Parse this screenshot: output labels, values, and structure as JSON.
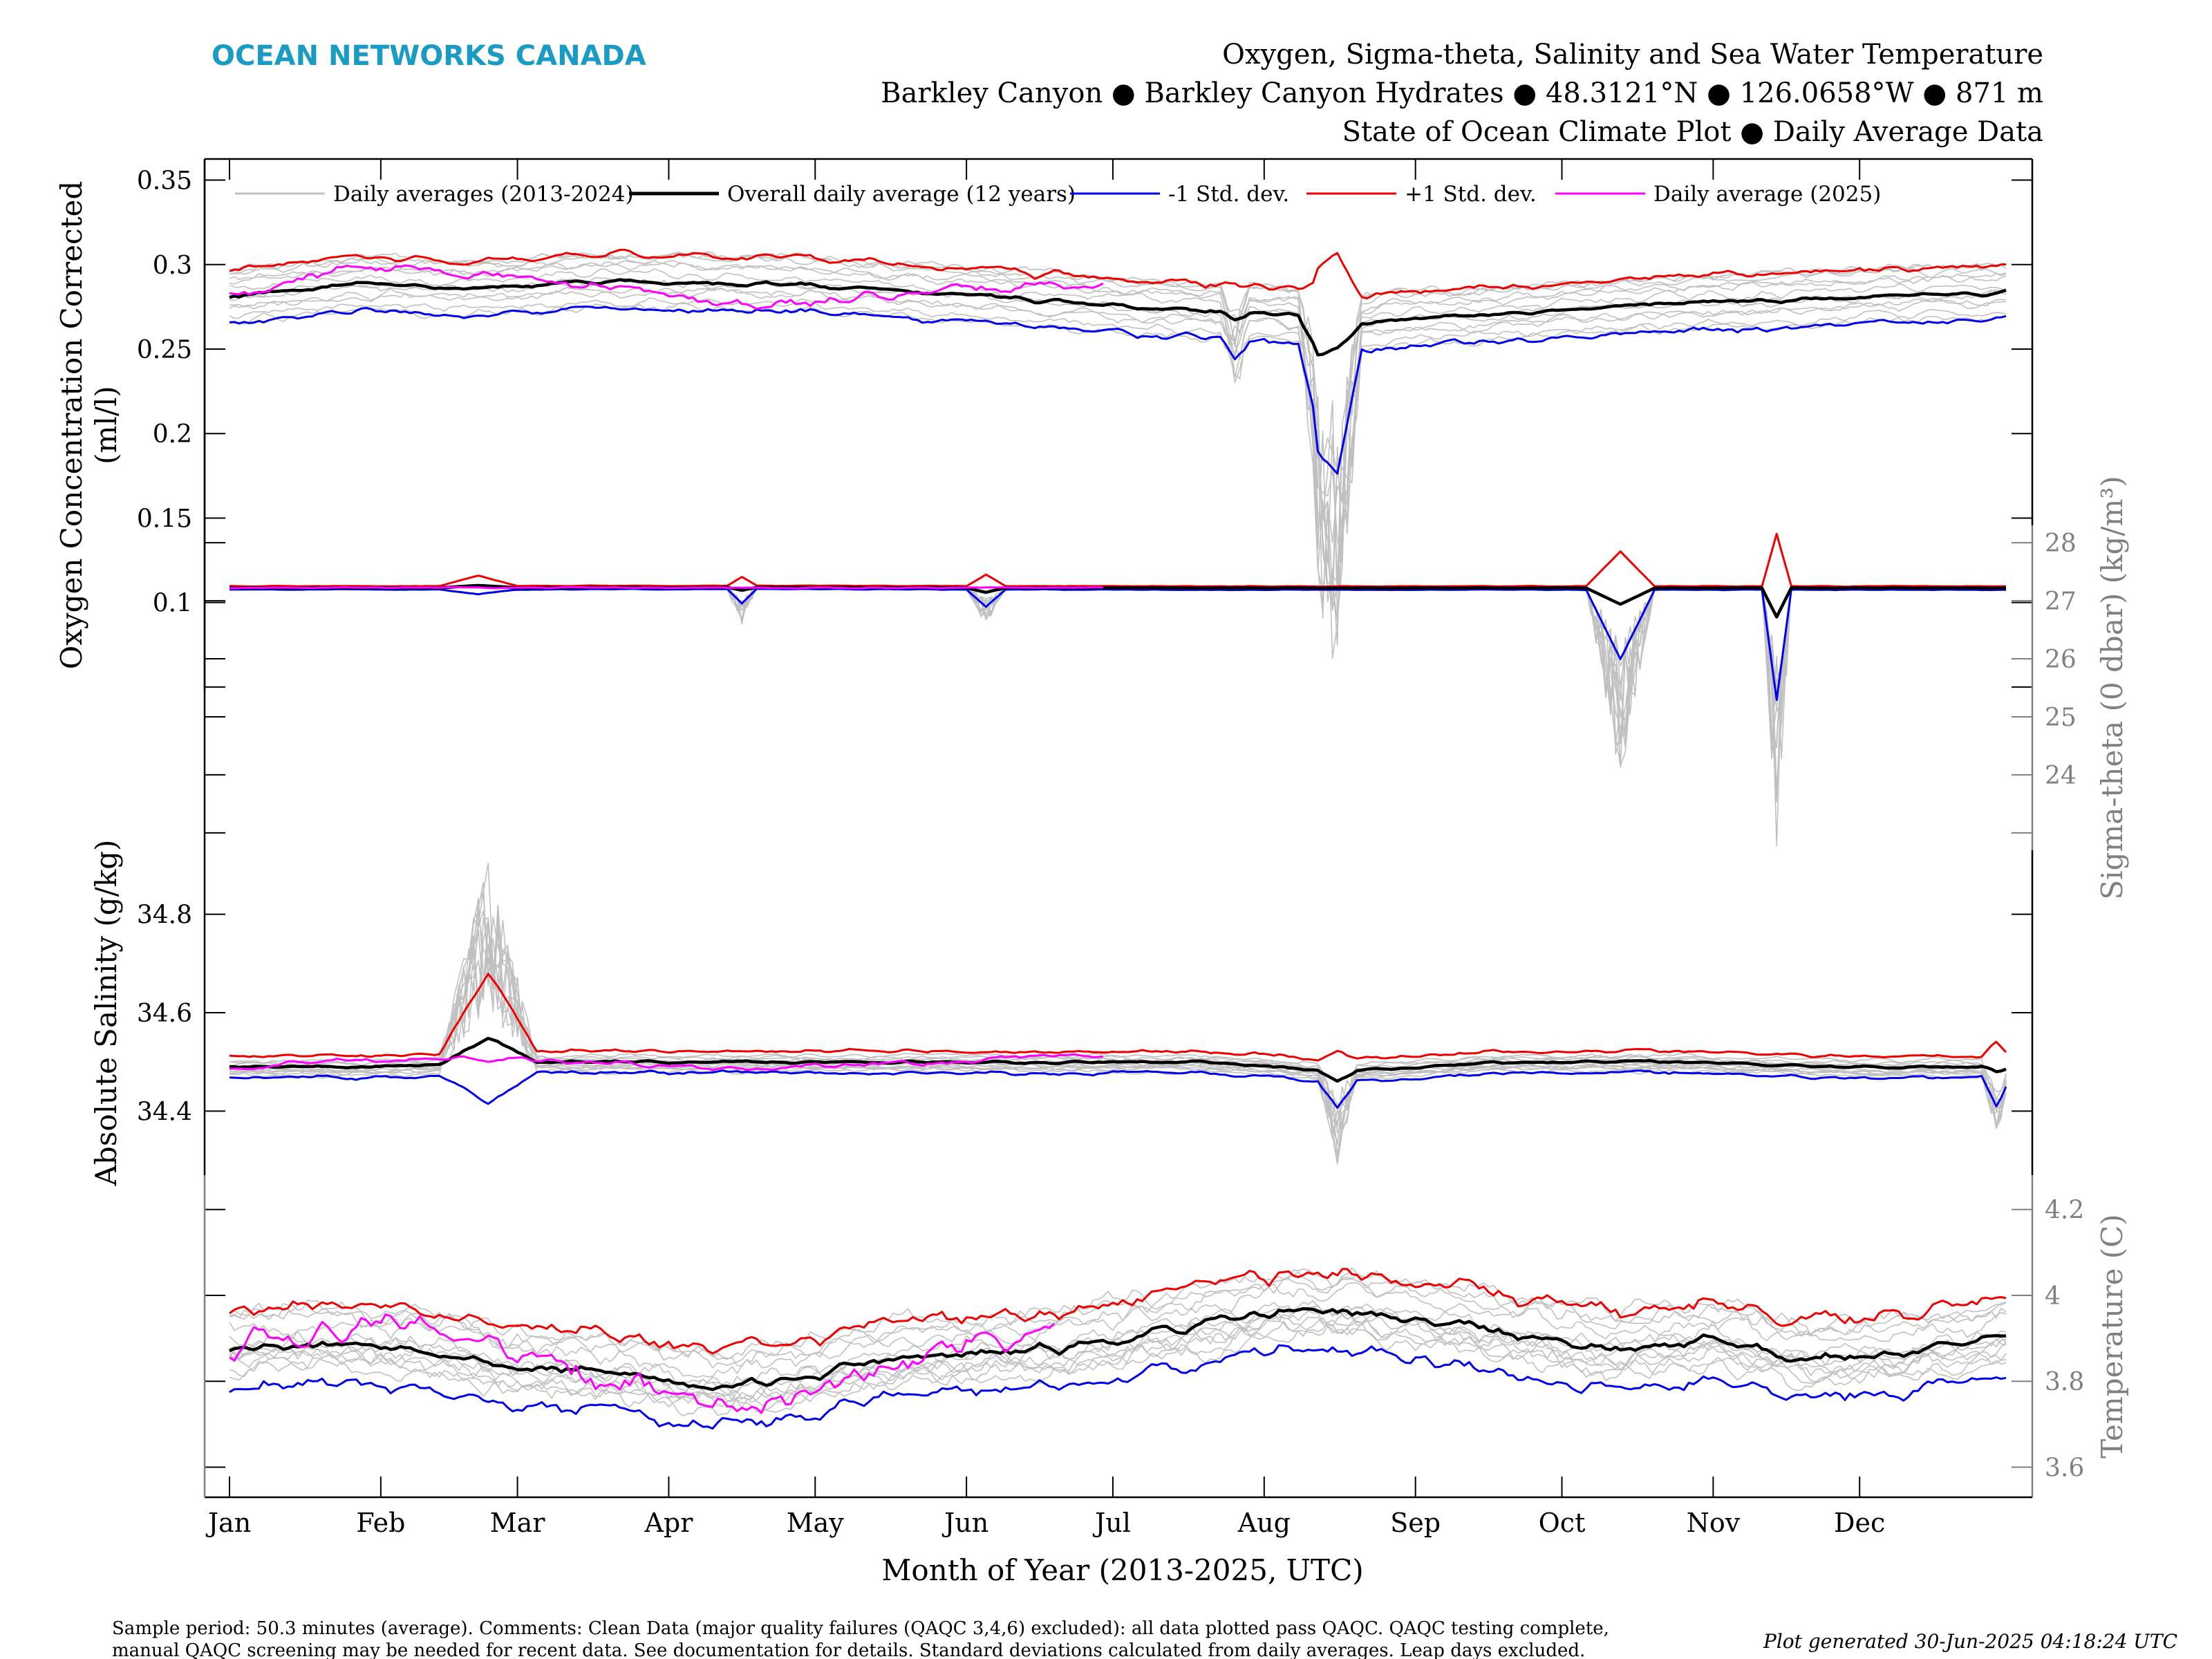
{
  "header": {
    "brand": "OCEAN NETWORKS CANADA",
    "brand_color": "#1a9bc4",
    "title_lines": [
      "Oxygen, Sigma-theta, Salinity and Sea Water Temperature",
      "Barkley Canyon ● Barkley Canyon Hydrates ● 48.3121°N ● 126.0658°W ● 871 m",
      "State of Ocean Climate Plot ● Daily Average Data"
    ]
  },
  "footer": {
    "sample_line1": "Sample period: 50.3 minutes (average). Comments: Clean Data (major quality failures (QAQC 3,4,6) excluded): all data plotted pass QAQC. QAQC testing complete,",
    "sample_line2": "manual QAQC screening may be needed for recent data. See documentation for details. Standard deviations calculated from daily averages. Leap days excluded.",
    "generated": "Plot generated 30-Jun-2025 04:18:24 UTC"
  },
  "chart_data": {
    "type": "line",
    "xlabel": "Month of Year (2013-2025, UTC)",
    "months": [
      "Jan",
      "Feb",
      "Mar",
      "Apr",
      "May",
      "Jun",
      "Jul",
      "Aug",
      "Sep",
      "Oct",
      "Nov",
      "Dec"
    ],
    "legend": [
      {
        "label": "Daily averages (2013-2024)",
        "color": "#c0c0c0"
      },
      {
        "label": "Overall daily average (12 years)",
        "color": "#000000"
      },
      {
        "label": "-1 Std. dev.",
        "color": "#0000ee"
      },
      {
        "label": "+1 Std. dev.",
        "color": "#ee0000"
      },
      {
        "label": "Daily average (2025)",
        "color": "#ff00ff"
      }
    ],
    "colors": {
      "history": "#c0c0c0",
      "mean": "#000000",
      "minus": "#0000ee",
      "plus": "#ee0000",
      "current": "#ff00ff",
      "right_axis": "#808080"
    },
    "panels": [
      {
        "name": "oxygen",
        "ylabel_line1": "Oxygen Concentration Corrected",
        "ylabel_line2": "(ml/l)",
        "axis_side": "left",
        "ylim": [
          0.0475,
          0.3625
        ],
        "ticks": [
          0.1,
          0.15,
          0.2,
          0.25,
          0.3,
          0.35
        ],
        "tick_labels": [
          "0.1",
          "0.15",
          "0.2",
          "0.25",
          "0.3",
          "0.35"
        ],
        "mean_nodes": [
          [
            1,
            0.281
          ],
          [
            15,
            0.285
          ],
          [
            30,
            0.288
          ],
          [
            45,
            0.286
          ],
          [
            60,
            0.287
          ],
          [
            75,
            0.29
          ],
          [
            90,
            0.29
          ],
          [
            105,
            0.289
          ],
          [
            120,
            0.288
          ],
          [
            135,
            0.285
          ],
          [
            150,
            0.282
          ],
          [
            165,
            0.279
          ],
          [
            180,
            0.276
          ],
          [
            195,
            0.273
          ],
          [
            210,
            0.272
          ],
          [
            220,
            0.27
          ],
          [
            225,
            0.262
          ],
          [
            230,
            0.262
          ],
          [
            240,
            0.268
          ],
          [
            255,
            0.269
          ],
          [
            270,
            0.272
          ],
          [
            285,
            0.275
          ],
          [
            300,
            0.277
          ],
          [
            315,
            0.278
          ],
          [
            330,
            0.28
          ],
          [
            345,
            0.282
          ],
          [
            365,
            0.283
          ]
        ],
        "std": 0.016,
        "noise": 0.0022,
        "history_spread": 0.018,
        "current_end_day": 180,
        "current_offset": 0.011,
        "spikes": [
          {
            "day": 224,
            "width": 4,
            "mean": -0.015,
            "minus": -0.045,
            "plus": 0.012,
            "hist": -0.09
          },
          {
            "day": 228,
            "width": 5,
            "mean": -0.012,
            "minus": -0.07,
            "plus": 0.028,
            "hist": -0.17
          },
          {
            "day": 207,
            "width": 3,
            "mean": -0.004,
            "minus": -0.01,
            "plus": 0.002,
            "hist": -0.03
          }
        ]
      },
      {
        "name": "sigma",
        "ylabel": "Sigma-theta (0 dbar) (kg/m³)",
        "axis_side": "right",
        "ylim": [
          22.7,
          28.3
        ],
        "ticks": [
          24,
          25,
          26,
          27,
          28
        ],
        "tick_labels": [
          "24",
          "25",
          "26",
          "27",
          "28"
        ],
        "mean_nodes": [
          [
            1,
            27.22
          ],
          [
            100,
            27.23
          ],
          [
            200,
            27.22
          ],
          [
            300,
            27.22
          ],
          [
            365,
            27.22
          ]
        ],
        "std": 0.03,
        "noise": 0.006,
        "history_spread": 0.02,
        "current_end_day": 180,
        "current_offset": 0.005,
        "spikes": [
          {
            "day": 52,
            "width": 8,
            "mean": 0.04,
            "minus": -0.08,
            "plus": 0.18,
            "hist": 0.05
          },
          {
            "day": 106,
            "width": 3,
            "mean": -0.05,
            "minus": -0.25,
            "plus": 0.15,
            "hist": -0.55
          },
          {
            "day": 156,
            "width": 4,
            "mean": -0.08,
            "minus": -0.3,
            "plus": 0.2,
            "hist": -0.55
          },
          {
            "day": 286,
            "width": 7,
            "mean": -0.28,
            "minus": -1.2,
            "plus": 0.6,
            "hist": -2.8
          },
          {
            "day": 318,
            "width": 3,
            "mean": -0.5,
            "minus": -1.9,
            "plus": 0.9,
            "hist": -3.9
          }
        ]
      },
      {
        "name": "salinity",
        "ylabel": "Absolute Salinity (g/kg)",
        "axis_side": "left",
        "ylim": [
          34.27,
          34.93
        ],
        "ticks": [
          34.4,
          34.6,
          34.8
        ],
        "tick_labels": [
          "34.4",
          "34.6",
          "34.8"
        ],
        "mean_nodes": [
          [
            1,
            34.49
          ],
          [
            30,
            34.49
          ],
          [
            60,
            34.5
          ],
          [
            100,
            34.5
          ],
          [
            150,
            34.5
          ],
          [
            200,
            34.5
          ],
          [
            230,
            34.48
          ],
          [
            260,
            34.5
          ],
          [
            300,
            34.5
          ],
          [
            330,
            34.49
          ],
          [
            365,
            34.49
          ]
        ],
        "std": 0.022,
        "noise": 0.004,
        "history_spread": 0.02,
        "current_end_day": 180,
        "current_offset": 0.01,
        "spikes": [
          {
            "day": 54,
            "width": 10,
            "mean": 0.05,
            "minus": -0.06,
            "plus": 0.16,
            "hist": 0.35
          },
          {
            "day": 228,
            "width": 4,
            "mean": -0.02,
            "minus": -0.05,
            "plus": 0.02,
            "hist": -0.15
          },
          {
            "day": 363,
            "width": 3,
            "mean": -0.01,
            "minus": -0.06,
            "plus": 0.03,
            "hist": -0.12
          }
        ]
      },
      {
        "name": "temperature",
        "ylabel": "Temperature (C)",
        "axis_side": "right",
        "ylim": [
          3.53,
          4.28
        ],
        "ticks": [
          3.6,
          3.8,
          4.0,
          4.2
        ],
        "tick_labels": [
          "3.6",
          "3.8",
          "4",
          "4.2"
        ],
        "mean_nodes": [
          [
            1,
            3.88
          ],
          [
            20,
            3.89
          ],
          [
            40,
            3.88
          ],
          [
            60,
            3.83
          ],
          [
            80,
            3.82
          ],
          [
            100,
            3.79
          ],
          [
            115,
            3.8
          ],
          [
            135,
            3.85
          ],
          [
            150,
            3.86
          ],
          [
            165,
            3.87
          ],
          [
            185,
            3.9
          ],
          [
            200,
            3.93
          ],
          [
            220,
            3.97
          ],
          [
            240,
            3.95
          ],
          [
            260,
            3.92
          ],
          [
            285,
            3.87
          ],
          [
            305,
            3.9
          ],
          [
            325,
            3.85
          ],
          [
            345,
            3.87
          ],
          [
            365,
            3.9
          ]
        ],
        "std": 0.09,
        "noise": 0.02,
        "history_spread": 0.1,
        "current_end_day": 170,
        "current_offset": 0.05,
        "spikes": []
      }
    ]
  }
}
